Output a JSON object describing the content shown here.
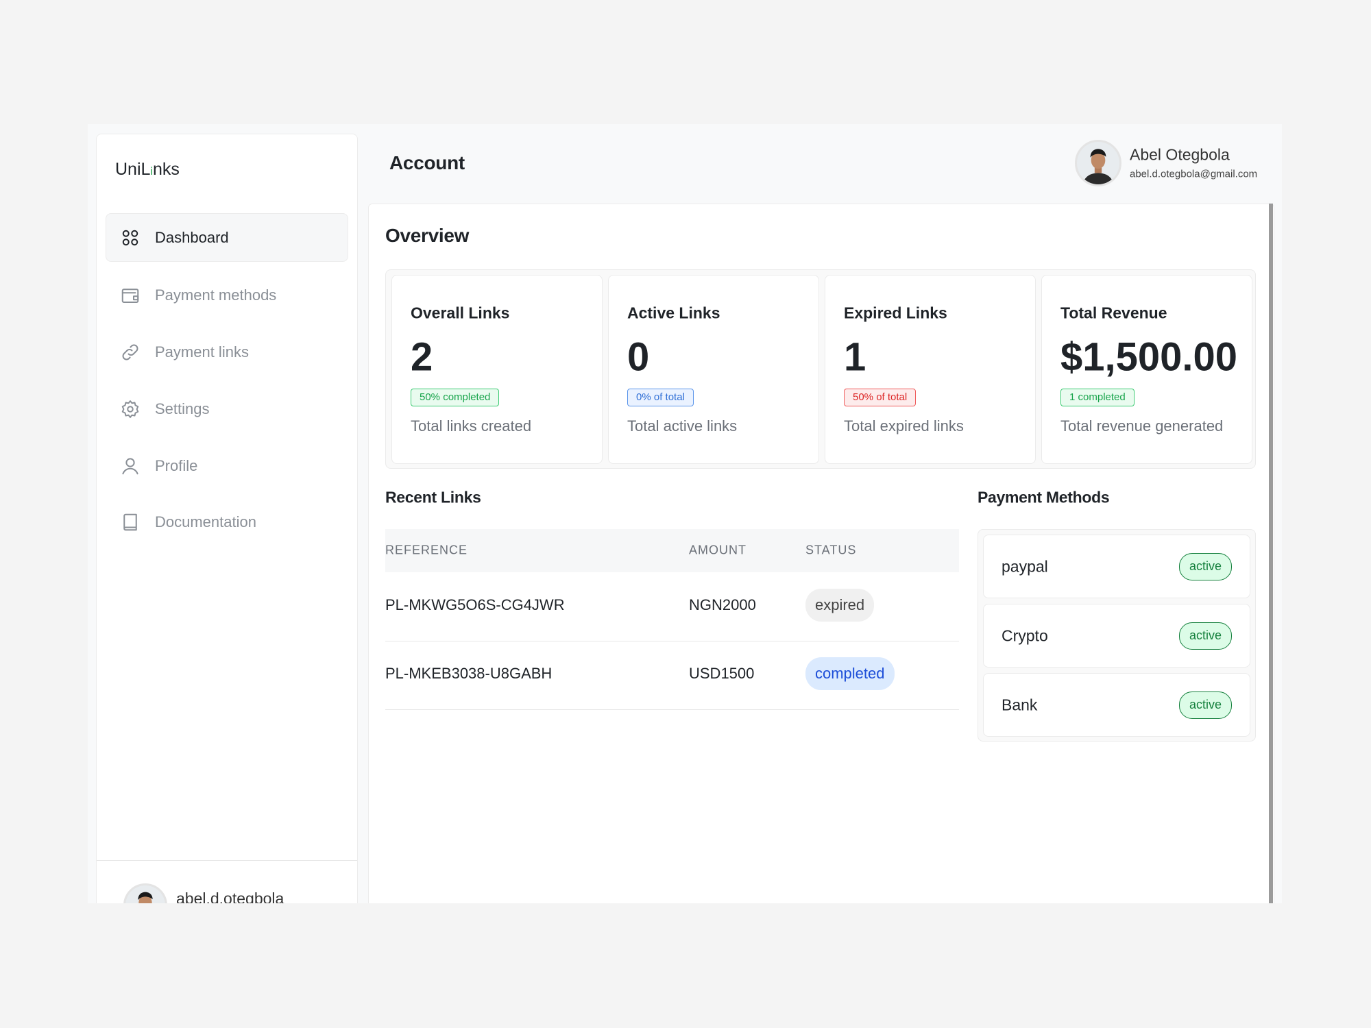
{
  "logo": {
    "prefix": "UniL",
    "accent": "i",
    "suffix": "nks"
  },
  "nav": [
    {
      "label": "Dashboard",
      "active": true
    },
    {
      "label": "Payment methods",
      "active": false
    },
    {
      "label": "Payment links",
      "active": false
    },
    {
      "label": "Settings",
      "active": false
    },
    {
      "label": "Profile",
      "active": false
    },
    {
      "label": "Documentation",
      "active": false
    }
  ],
  "sidebar_user": "abel.d.otegbola",
  "header": {
    "title": "Account",
    "user": {
      "name": "Abel Otegbola",
      "email": "abel.d.otegbola@gmail.com"
    }
  },
  "overview": {
    "title": "Overview",
    "stats": [
      {
        "title": "Overall Links",
        "value": 2,
        "badge": "50% completed",
        "tone": "green",
        "caption": "Total links created"
      },
      {
        "title": "Active Links",
        "value": 0,
        "badge": "0% of total",
        "tone": "blue",
        "caption": "Total active links"
      },
      {
        "title": "Expired Links",
        "value": 1,
        "badge": "50% of total",
        "tone": "red",
        "caption": "Total expired links"
      },
      {
        "title": "Total Revenue",
        "value": "$1,500.00",
        "badge": "1 completed",
        "tone": "green",
        "caption": "Total revenue generated"
      }
    ]
  },
  "recent_links": {
    "title": "Recent Links",
    "columns": [
      "REFERENCE",
      "AMOUNT",
      "STATUS"
    ],
    "rows": [
      {
        "reference": "PL-MKWG5O6S-CG4JWR",
        "amount": "NGN2000",
        "status": "expired",
        "tone": "gray"
      },
      {
        "reference": "PL-MKEB3038-U8GABH",
        "amount": "USD1500",
        "status": "completed",
        "tone": "lightblue"
      }
    ]
  },
  "payment_methods": {
    "title": "Payment Methods",
    "items": [
      {
        "name": "paypal",
        "status": "active"
      },
      {
        "name": "Crypto",
        "status": "active"
      },
      {
        "name": "Bank",
        "status": "active"
      }
    ]
  }
}
